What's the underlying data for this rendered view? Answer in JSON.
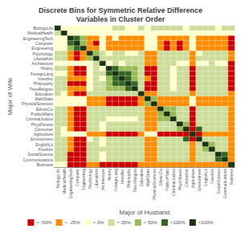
{
  "chart_data": {
    "type": "heatmap",
    "title": "Discrete Bins for Symmetric Relative Difference\nVariables in Cluster Order",
    "xlabel": "Major of Husband",
    "ylabel": "Major of Wife",
    "categories": [
      "BiologyLife",
      "MedicalHealth",
      "EngineeringTech",
      "Computer",
      "Engineering",
      "Psychology",
      "LiberalArts",
      "Architecture",
      "History",
      "ForeignLang",
      "Interdisc",
      "Philosophy",
      "TheoReligion",
      "Education",
      "MathStats",
      "PhysicalSciences",
      "EthnicCiv",
      "PublicAffairs",
      "CriminalJustice",
      "PhysFitness",
      "Consumer",
      "Agriculture",
      "Environment",
      "EnglishLit",
      "FineArts",
      "SocialScience",
      "Communications",
      "Business"
    ],
    "color_bins": [
      {
        "value": 0,
        "label": "< -50%",
        "color": "#cc0000"
      },
      {
        "value": 1,
        "label": "< -25%",
        "color": "#ff8c00"
      },
      {
        "value": 2,
        "label": "< 0%",
        "color": "#ffffcc"
      },
      {
        "value": 3,
        "label": "< 25%",
        "color": "#ccdd99"
      },
      {
        "value": 4,
        "label": "< 50%",
        "color": "#99bb55"
      },
      {
        "value": 5,
        "label": "<100%",
        "color": "#336622"
      },
      {
        "value": 6,
        "label": ">100%",
        "color": "#1a3311"
      }
    ],
    "cells": [
      [
        6,
        2,
        2,
        2,
        2,
        2,
        2,
        2,
        2,
        3,
        3,
        2,
        2,
        3,
        2,
        3,
        3,
        3,
        3,
        3,
        2,
        3,
        3,
        3,
        3,
        2,
        3,
        3
      ],
      [
        3,
        6,
        2,
        2,
        2,
        2,
        2,
        2,
        2,
        2,
        2,
        2,
        2,
        2,
        2,
        2,
        2,
        2,
        2,
        2,
        2,
        2,
        2,
        2,
        2,
        2,
        2,
        2
      ],
      [
        2,
        2,
        6,
        5,
        4,
        1,
        1,
        2,
        1,
        2,
        1,
        1,
        1,
        1,
        2,
        2,
        1,
        1,
        1,
        1,
        1,
        2,
        1,
        1,
        1,
        1,
        1,
        0
      ],
      [
        2,
        2,
        5,
        6,
        4,
        1,
        0,
        2,
        1,
        1,
        1,
        1,
        1,
        1,
        2,
        2,
        1,
        0,
        1,
        0,
        1,
        2,
        1,
        1,
        1,
        1,
        1,
        0
      ],
      [
        2,
        2,
        4,
        5,
        6,
        1,
        1,
        2,
        1,
        1,
        1,
        1,
        1,
        1,
        2,
        2,
        1,
        0,
        1,
        0,
        1,
        2,
        1,
        1,
        1,
        1,
        1,
        0
      ],
      [
        3,
        3,
        1,
        0,
        1,
        6,
        4,
        3,
        2,
        3,
        3,
        2,
        2,
        3,
        1,
        1,
        3,
        3,
        3,
        3,
        3,
        1,
        2,
        3,
        3,
        3,
        3,
        1
      ],
      [
        3,
        3,
        1,
        0,
        1,
        4,
        6,
        3,
        3,
        3,
        3,
        3,
        3,
        3,
        1,
        1,
        3,
        3,
        3,
        3,
        3,
        1,
        3,
        3,
        3,
        3,
        3,
        1
      ],
      [
        2,
        2,
        2,
        2,
        2,
        2,
        3,
        6,
        2,
        3,
        2,
        3,
        3,
        3,
        1,
        1,
        3,
        3,
        3,
        2,
        2,
        1,
        2,
        2,
        3,
        2,
        2,
        0
      ],
      [
        3,
        3,
        1,
        0,
        0,
        2,
        3,
        2,
        6,
        5,
        4,
        4,
        4,
        3,
        0,
        0,
        3,
        3,
        2,
        3,
        3,
        0,
        3,
        3,
        3,
        3,
        3,
        0
      ],
      [
        2,
        2,
        1,
        0,
        0,
        2,
        3,
        3,
        5,
        6,
        5,
        5,
        4,
        3,
        0,
        0,
        3,
        3,
        2,
        3,
        3,
        0,
        3,
        3,
        3,
        3,
        3,
        0
      ],
      [
        3,
        3,
        1,
        1,
        1,
        2,
        3,
        2,
        4,
        5,
        6,
        5,
        4,
        3,
        1,
        0,
        3,
        3,
        2,
        3,
        3,
        0,
        3,
        3,
        3,
        3,
        3,
        0
      ],
      [
        3,
        3,
        0,
        0,
        0,
        2,
        3,
        3,
        4,
        5,
        5,
        6,
        5,
        3,
        0,
        0,
        3,
        3,
        2,
        3,
        3,
        0,
        3,
        3,
        3,
        3,
        3,
        0
      ],
      [
        3,
        3,
        1,
        1,
        1,
        2,
        3,
        3,
        4,
        4,
        4,
        5,
        6,
        3,
        0,
        0,
        3,
        3,
        2,
        3,
        3,
        0,
        3,
        3,
        3,
        3,
        3,
        0
      ],
      [
        3,
        2,
        1,
        0,
        0,
        3,
        3,
        3,
        3,
        3,
        3,
        3,
        3,
        6,
        1,
        1,
        3,
        3,
        3,
        3,
        3,
        1,
        3,
        3,
        3,
        3,
        3,
        1
      ],
      [
        2,
        2,
        2,
        2,
        2,
        1,
        1,
        1,
        0,
        0,
        0,
        0,
        0,
        1,
        6,
        4,
        1,
        1,
        1,
        1,
        1,
        2,
        1,
        1,
        1,
        1,
        1,
        1
      ],
      [
        2,
        2,
        2,
        2,
        2,
        1,
        1,
        1,
        0,
        0,
        0,
        0,
        0,
        1,
        4,
        6,
        1,
        1,
        1,
        1,
        1,
        2,
        1,
        1,
        1,
        1,
        1,
        1
      ],
      [
        3,
        3,
        1,
        0,
        0,
        3,
        3,
        3,
        3,
        3,
        3,
        3,
        3,
        3,
        1,
        1,
        6,
        4,
        4,
        3,
        3,
        0,
        3,
        3,
        3,
        3,
        3,
        1
      ],
      [
        3,
        3,
        1,
        0,
        0,
        3,
        3,
        3,
        3,
        3,
        3,
        3,
        3,
        3,
        1,
        1,
        4,
        6,
        4,
        3,
        3,
        0,
        3,
        3,
        3,
        3,
        3,
        1
      ],
      [
        3,
        3,
        1,
        0,
        0,
        3,
        3,
        3,
        2,
        2,
        2,
        2,
        2,
        3,
        1,
        1,
        4,
        4,
        6,
        3,
        3,
        0,
        3,
        3,
        3,
        3,
        3,
        1
      ],
      [
        3,
        3,
        1,
        0,
        0,
        3,
        3,
        2,
        3,
        3,
        3,
        3,
        3,
        3,
        1,
        1,
        3,
        3,
        3,
        6,
        4,
        0,
        3,
        3,
        3,
        3,
        3,
        1
      ],
      [
        3,
        2,
        1,
        0,
        0,
        3,
        3,
        2,
        3,
        3,
        3,
        3,
        3,
        3,
        1,
        1,
        3,
        3,
        3,
        4,
        6,
        0,
        5,
        3,
        3,
        3,
        3,
        1
      ],
      [
        3,
        2,
        2,
        2,
        2,
        1,
        1,
        1,
        0,
        0,
        0,
        0,
        0,
        1,
        2,
        2,
        0,
        0,
        0,
        0,
        0,
        6,
        0,
        1,
        1,
        1,
        1,
        1
      ],
      [
        3,
        3,
        1,
        0,
        0,
        2,
        3,
        2,
        3,
        3,
        3,
        3,
        3,
        3,
        1,
        1,
        3,
        3,
        3,
        3,
        5,
        0,
        6,
        3,
        3,
        3,
        3,
        1
      ],
      [
        3,
        3,
        1,
        0,
        0,
        3,
        3,
        2,
        3,
        3,
        3,
        3,
        3,
        3,
        1,
        1,
        3,
        3,
        3,
        3,
        3,
        1,
        3,
        6,
        4,
        3,
        3,
        1
      ],
      [
        3,
        3,
        1,
        0,
        0,
        3,
        3,
        3,
        3,
        3,
        3,
        3,
        3,
        3,
        1,
        1,
        3,
        3,
        3,
        3,
        3,
        1,
        3,
        4,
        6,
        3,
        3,
        1
      ],
      [
        3,
        3,
        0,
        0,
        0,
        3,
        3,
        2,
        3,
        3,
        3,
        3,
        3,
        3,
        1,
        1,
        3,
        3,
        3,
        3,
        3,
        1,
        3,
        3,
        3,
        6,
        5,
        1
      ],
      [
        3,
        3,
        0,
        0,
        0,
        3,
        3,
        2,
        3,
        3,
        3,
        3,
        3,
        3,
        1,
        1,
        3,
        3,
        3,
        3,
        3,
        1,
        3,
        3,
        3,
        5,
        6,
        1
      ],
      [
        2,
        2,
        0,
        0,
        0,
        1,
        1,
        0,
        0,
        0,
        0,
        0,
        0,
        1,
        1,
        1,
        1,
        1,
        1,
        1,
        1,
        1,
        1,
        1,
        1,
        1,
        1,
        6
      ]
    ]
  }
}
